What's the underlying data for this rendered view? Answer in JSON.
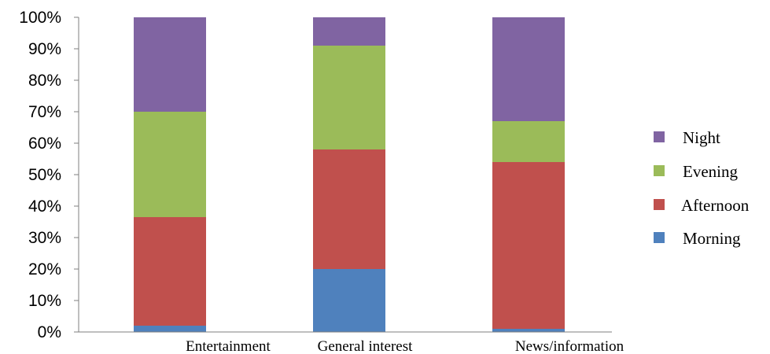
{
  "chart_data": {
    "type": "bar",
    "stacked": true,
    "normalized": true,
    "categories": [
      "Entertainment",
      "General interest",
      "News/information"
    ],
    "series": [
      {
        "name": "Morning",
        "color": "#4f81bd",
        "values": [
          2,
          20,
          1
        ]
      },
      {
        "name": "Afternoon",
        "color": "#c0504d",
        "values": [
          34.5,
          38,
          53
        ]
      },
      {
        "name": "Evening",
        "color": "#9bbb59",
        "values": [
          33.5,
          33,
          13
        ]
      },
      {
        "name": "Night",
        "color": "#8064a2",
        "values": [
          30,
          9,
          33
        ]
      }
    ],
    "ylim": [
      0,
      100
    ],
    "yticks": [
      "0%",
      "10%",
      "20%",
      "30%",
      "40%",
      "50%",
      "60%",
      "70%",
      "80%",
      "90%",
      "100%"
    ],
    "title": "",
    "xlabel": "",
    "ylabel": "",
    "grid": false,
    "legend": {
      "position": "right",
      "order": [
        "Night",
        "Evening",
        "Afternoon",
        "Morning"
      ]
    }
  }
}
